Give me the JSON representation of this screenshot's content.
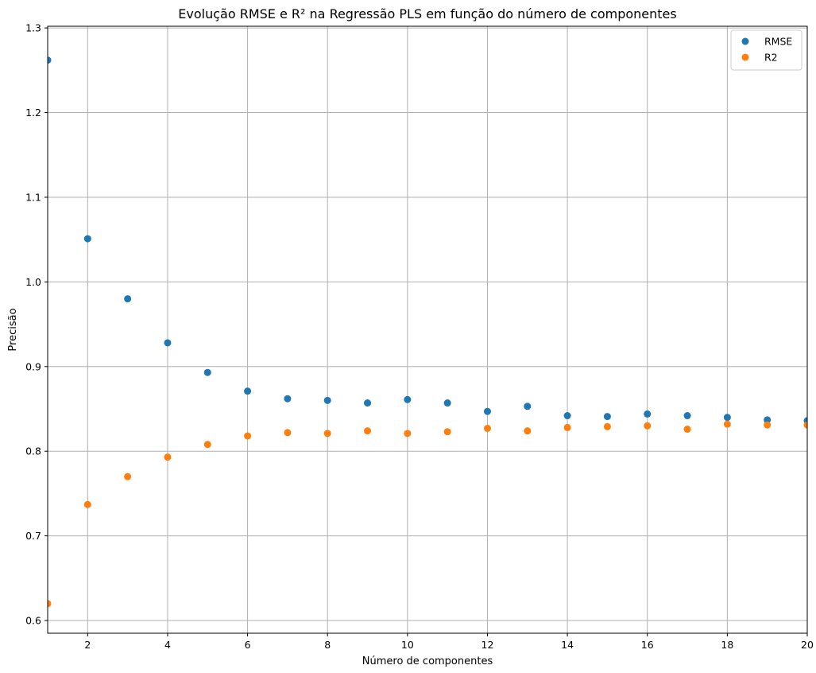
{
  "chart_data": {
    "type": "scatter",
    "title": "Evolução RMSE e R² na Regressão PLS em função do número de componentes",
    "xlabel": "Número de componentes",
    "ylabel": "Precisão",
    "xlim": [
      1,
      20
    ],
    "ylim": [
      0.585,
      1.302
    ],
    "xticks": [
      2,
      4,
      6,
      8,
      10,
      12,
      14,
      16,
      18,
      20
    ],
    "yticks": [
      0.6,
      0.7,
      0.8,
      0.9,
      1.0,
      1.1,
      1.2,
      1.3
    ],
    "grid": true,
    "legend_position": "top-right",
    "x": [
      1,
      2,
      3,
      4,
      5,
      6,
      7,
      8,
      9,
      10,
      11,
      12,
      13,
      14,
      15,
      16,
      17,
      18,
      19,
      20
    ],
    "series": [
      {
        "name": "RMSE",
        "color": "#1f77b4",
        "values": [
          1.262,
          1.051,
          0.98,
          0.928,
          0.893,
          0.871,
          0.862,
          0.86,
          0.857,
          0.861,
          0.857,
          0.847,
          0.853,
          0.842,
          0.841,
          0.844,
          0.842,
          0.84,
          0.837,
          0.836
        ]
      },
      {
        "name": "R2",
        "color": "#ff7f0e",
        "values": [
          0.62,
          0.737,
          0.77,
          0.793,
          0.808,
          0.818,
          0.822,
          0.821,
          0.824,
          0.821,
          0.823,
          0.827,
          0.824,
          0.828,
          0.829,
          0.83,
          0.826,
          0.832,
          0.831,
          0.831
        ]
      }
    ]
  }
}
